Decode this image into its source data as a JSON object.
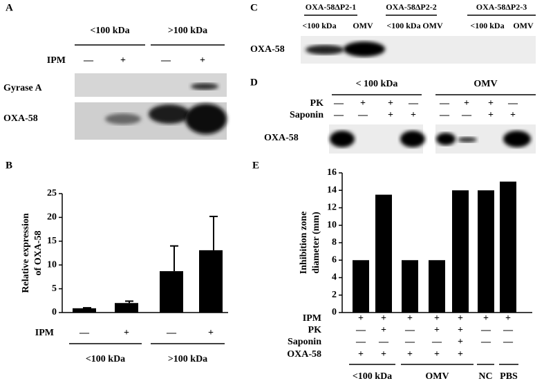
{
  "panels": {
    "a": {
      "label": "A",
      "groups": [
        "<100 kDa",
        ">100 kDa"
      ],
      "treatment": {
        "name": "IPM",
        "signs": [
          "—",
          "+",
          "—",
          "+"
        ]
      },
      "rows": [
        "Gyrase A",
        "OXA-58"
      ]
    },
    "c": {
      "label": "C",
      "groups": [
        "OXA-58ΔP2-1",
        "OXA-58ΔP2-2",
        "OXA-58ΔP2-3"
      ],
      "lanes": [
        "<100 kDa",
        "OMV",
        "<100 kDa",
        "OMV",
        "<100 kDa",
        "OMV"
      ],
      "rows": [
        "OXA-58"
      ]
    },
    "d": {
      "label": "D",
      "groups": [
        "< 100 kDa",
        "OMV"
      ],
      "treatments": [
        {
          "name": "PK",
          "signs": [
            "—",
            "+",
            "+",
            "—",
            "—",
            "+",
            "+",
            "—"
          ]
        },
        {
          "name": "Saponin",
          "signs": [
            "—",
            "—",
            "+",
            "+",
            "—",
            "—",
            "+",
            "+"
          ]
        }
      ],
      "rows": [
        "OXA-58"
      ]
    }
  },
  "chart_data": [
    {
      "type": "bar",
      "panel": "B",
      "y_label": [
        "Relative expression",
        "of OXA-58"
      ],
      "values": [
        0.9,
        2,
        8.7,
        13.1
      ],
      "errors": [
        0.1,
        0.4,
        5.3,
        7.1
      ],
      "color": "#000000",
      "ylim": [
        0,
        25
      ],
      "yticks": [
        0,
        5,
        10,
        15,
        20,
        25
      ],
      "treatments": [
        {
          "name": "IPM",
          "signs": [
            "—",
            "+",
            "—",
            "+"
          ]
        }
      ],
      "groups": [
        "<100 kDa",
        ">100 kDa"
      ]
    },
    {
      "type": "bar",
      "panel": "E",
      "y_label": [
        "Inhibition zone",
        "diameter (mm)"
      ],
      "values": [
        6,
        13.5,
        6,
        6,
        14,
        14,
        15
      ],
      "color": "#000000",
      "ylim": [
        0,
        16
      ],
      "yticks": [
        0,
        2,
        4,
        6,
        8,
        10,
        12,
        14,
        16
      ],
      "treatments": [
        {
          "name": "IPM",
          "signs": [
            "+",
            "+",
            "+",
            "+",
            "+",
            "+",
            "+"
          ]
        },
        {
          "name": "PK",
          "signs": [
            "—",
            "+",
            "—",
            "+",
            "+",
            "—",
            "—"
          ]
        },
        {
          "name": "Saponin",
          "signs": [
            "—",
            "—",
            "—",
            "—",
            "+",
            "—",
            "—"
          ]
        },
        {
          "name": "OXA-58",
          "signs": [
            "+",
            "+",
            "+",
            "+",
            "+"
          ]
        }
      ],
      "groups": [
        "<100 kDa",
        "OMV",
        "NC",
        "PBS"
      ]
    }
  ]
}
